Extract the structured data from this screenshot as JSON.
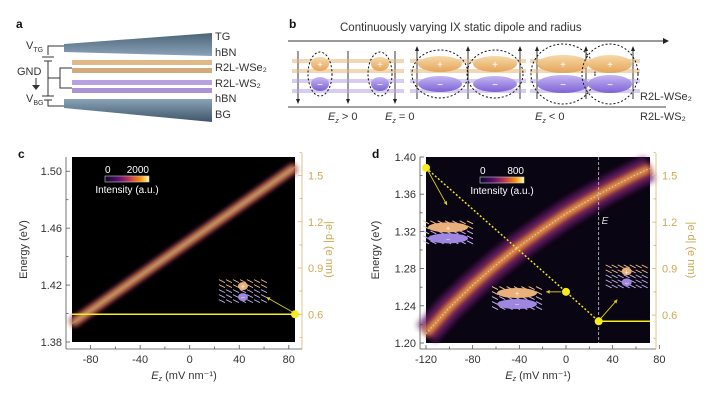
{
  "panels": {
    "a": {
      "label": "a",
      "layers": [
        "TG",
        "hBN",
        "R2L-WSe₂",
        "R2L-WS₂",
        "hBN",
        "BG"
      ],
      "voltages": {
        "top": "V",
        "top_sub": "TG",
        "ground": "GND",
        "bottom": "V",
        "bottom_sub": "BG"
      }
    },
    "b": {
      "label": "b",
      "title": "Continuously varying IX static dipole and radius",
      "layers": [
        "R2L-WSe₂",
        "R2L-WS₂"
      ],
      "conditions": [
        {
          "sym": "E",
          "sub": "z",
          "rel": " > 0"
        },
        {
          "sym": "E",
          "sub": "z",
          "rel": " = 0"
        },
        {
          "sym": "E",
          "sub": "z",
          "rel": " < 0"
        }
      ]
    }
  },
  "chart_data": [
    {
      "id": "c",
      "label": "c",
      "type": "heatmap",
      "xlabel": "E",
      "xlabel_sub": "z",
      "xlabel_unit": " (mV nm⁻¹)",
      "ylabel": "Energy (eV)",
      "y2label": "|e·d| (e nm)",
      "xlim": [
        -95,
        85
      ],
      "ylim": [
        1.38,
        1.51
      ],
      "y2lim": [
        0.42,
        1.62
      ],
      "xticks": [
        -80,
        -40,
        0,
        40,
        80
      ],
      "yticks": [
        1.38,
        1.42,
        1.46,
        1.5
      ],
      "ytick_labels": [
        "1.38",
        "1.42",
        "1.46",
        "1.50"
      ],
      "y2ticks": [
        0.6,
        0.9,
        1.2,
        1.5
      ],
      "colorbar": {
        "min": "0",
        "max": "2000",
        "label": "Intensity (a.u.)"
      },
      "peak_line": {
        "x": [
          -95,
          85
        ],
        "y": [
          1.393,
          1.503
        ]
      },
      "dipole_series": {
        "x": [
          -95,
          85
        ],
        "y": [
          0.6,
          0.6
        ]
      },
      "dipole_marker": {
        "x": 85,
        "y": 0.6
      }
    },
    {
      "id": "d",
      "label": "d",
      "type": "heatmap",
      "xlabel": "E",
      "xlabel_sub": "z",
      "xlabel_unit": " (mV nm⁻¹)",
      "ylabel": "Energy (eV)",
      "y2label": "|e·d| (e nm)",
      "xlim": [
        -120,
        72
      ],
      "ylim": [
        1.2,
        1.4
      ],
      "y2lim": [
        0.42,
        1.62
      ],
      "xticks": [
        -120,
        -80,
        -40,
        0,
        40,
        80
      ],
      "yticks": [
        1.2,
        1.24,
        1.28,
        1.32,
        1.36,
        1.4
      ],
      "ytick_labels": [
        "1.20",
        "1.24",
        "1.28",
        "1.32",
        "1.36",
        "1.40"
      ],
      "y2ticks": [
        0.6,
        0.9,
        1.2,
        1.5
      ],
      "colorbar": {
        "min": "0",
        "max": "800",
        "label": "Intensity (a.u.)"
      },
      "critical_field": {
        "label": "E",
        "label_sub": "c",
        "x": 28
      },
      "peak_curve": {
        "x": [
          -120,
          -100,
          -80,
          -60,
          -40,
          -20,
          0,
          20,
          40,
          60,
          72
        ],
        "y": [
          1.21,
          1.238,
          1.262,
          1.284,
          1.304,
          1.322,
          1.339,
          1.354,
          1.368,
          1.381,
          1.388
        ]
      },
      "dipole_series": {
        "x": [
          -120,
          0,
          28,
          72
        ],
        "y": [
          1.55,
          0.75,
          0.56,
          0.56
        ]
      },
      "dipole_markers": [
        {
          "x": -120,
          "y": 1.55
        },
        {
          "x": 0,
          "y": 0.75
        },
        {
          "x": 28,
          "y": 0.56
        }
      ]
    }
  ]
}
